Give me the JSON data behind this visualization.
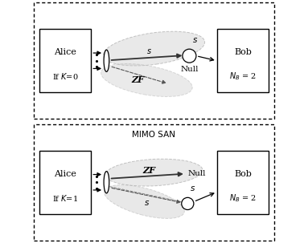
{
  "fig_width": 3.83,
  "fig_height": 3.03,
  "dpi": 100,
  "bg_color": "#ffffff",
  "panel1": {
    "title": "",
    "alice_label": "Alice",
    "alice_sub": "If $K$=0",
    "bob_label": "Bob",
    "bob_sub": "$N_B$ = 2",
    "zf_label": "ZF",
    "null_label": "Null",
    "s_top": "$s$",
    "s_beam": "$s$"
  },
  "panel2": {
    "title": "MIMO SAN",
    "alice_label": "Alice",
    "alice_sub": "If $K$=1",
    "bob_label": "Bob",
    "bob_sub": "$N_B$ = 2",
    "zf_label": "ZF",
    "null_label": "Null",
    "s_label": "$s$",
    "s_beam": "$s$"
  }
}
